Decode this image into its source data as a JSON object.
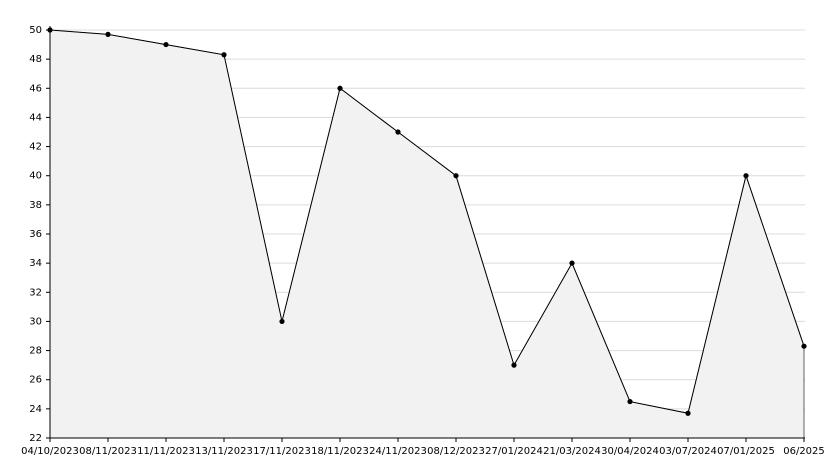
{
  "chart_data": {
    "type": "line",
    "categories": [
      "04/10/2023",
      "08/11/2023",
      "11/11/2023",
      "13/11/2023",
      "17/11/2023",
      "18/11/2023",
      "24/11/2023",
      "08/12/2023",
      "27/01/2024",
      "21/03/2024",
      "30/04/2024",
      "03/07/2024",
      "07/01/2025",
      "06/2025"
    ],
    "values": [
      50,
      49.7,
      49,
      48.3,
      30,
      46,
      43,
      40,
      27,
      34,
      24.5,
      23.7,
      40,
      28.3
    ],
    "color": "#000000",
    "fill": "#f2f2f2",
    "ylim": [
      22,
      50
    ],
    "yticks": [
      22,
      24,
      26,
      28,
      30,
      32,
      34,
      36,
      38,
      40,
      42,
      44,
      46,
      48,
      50
    ],
    "grid": true
  }
}
